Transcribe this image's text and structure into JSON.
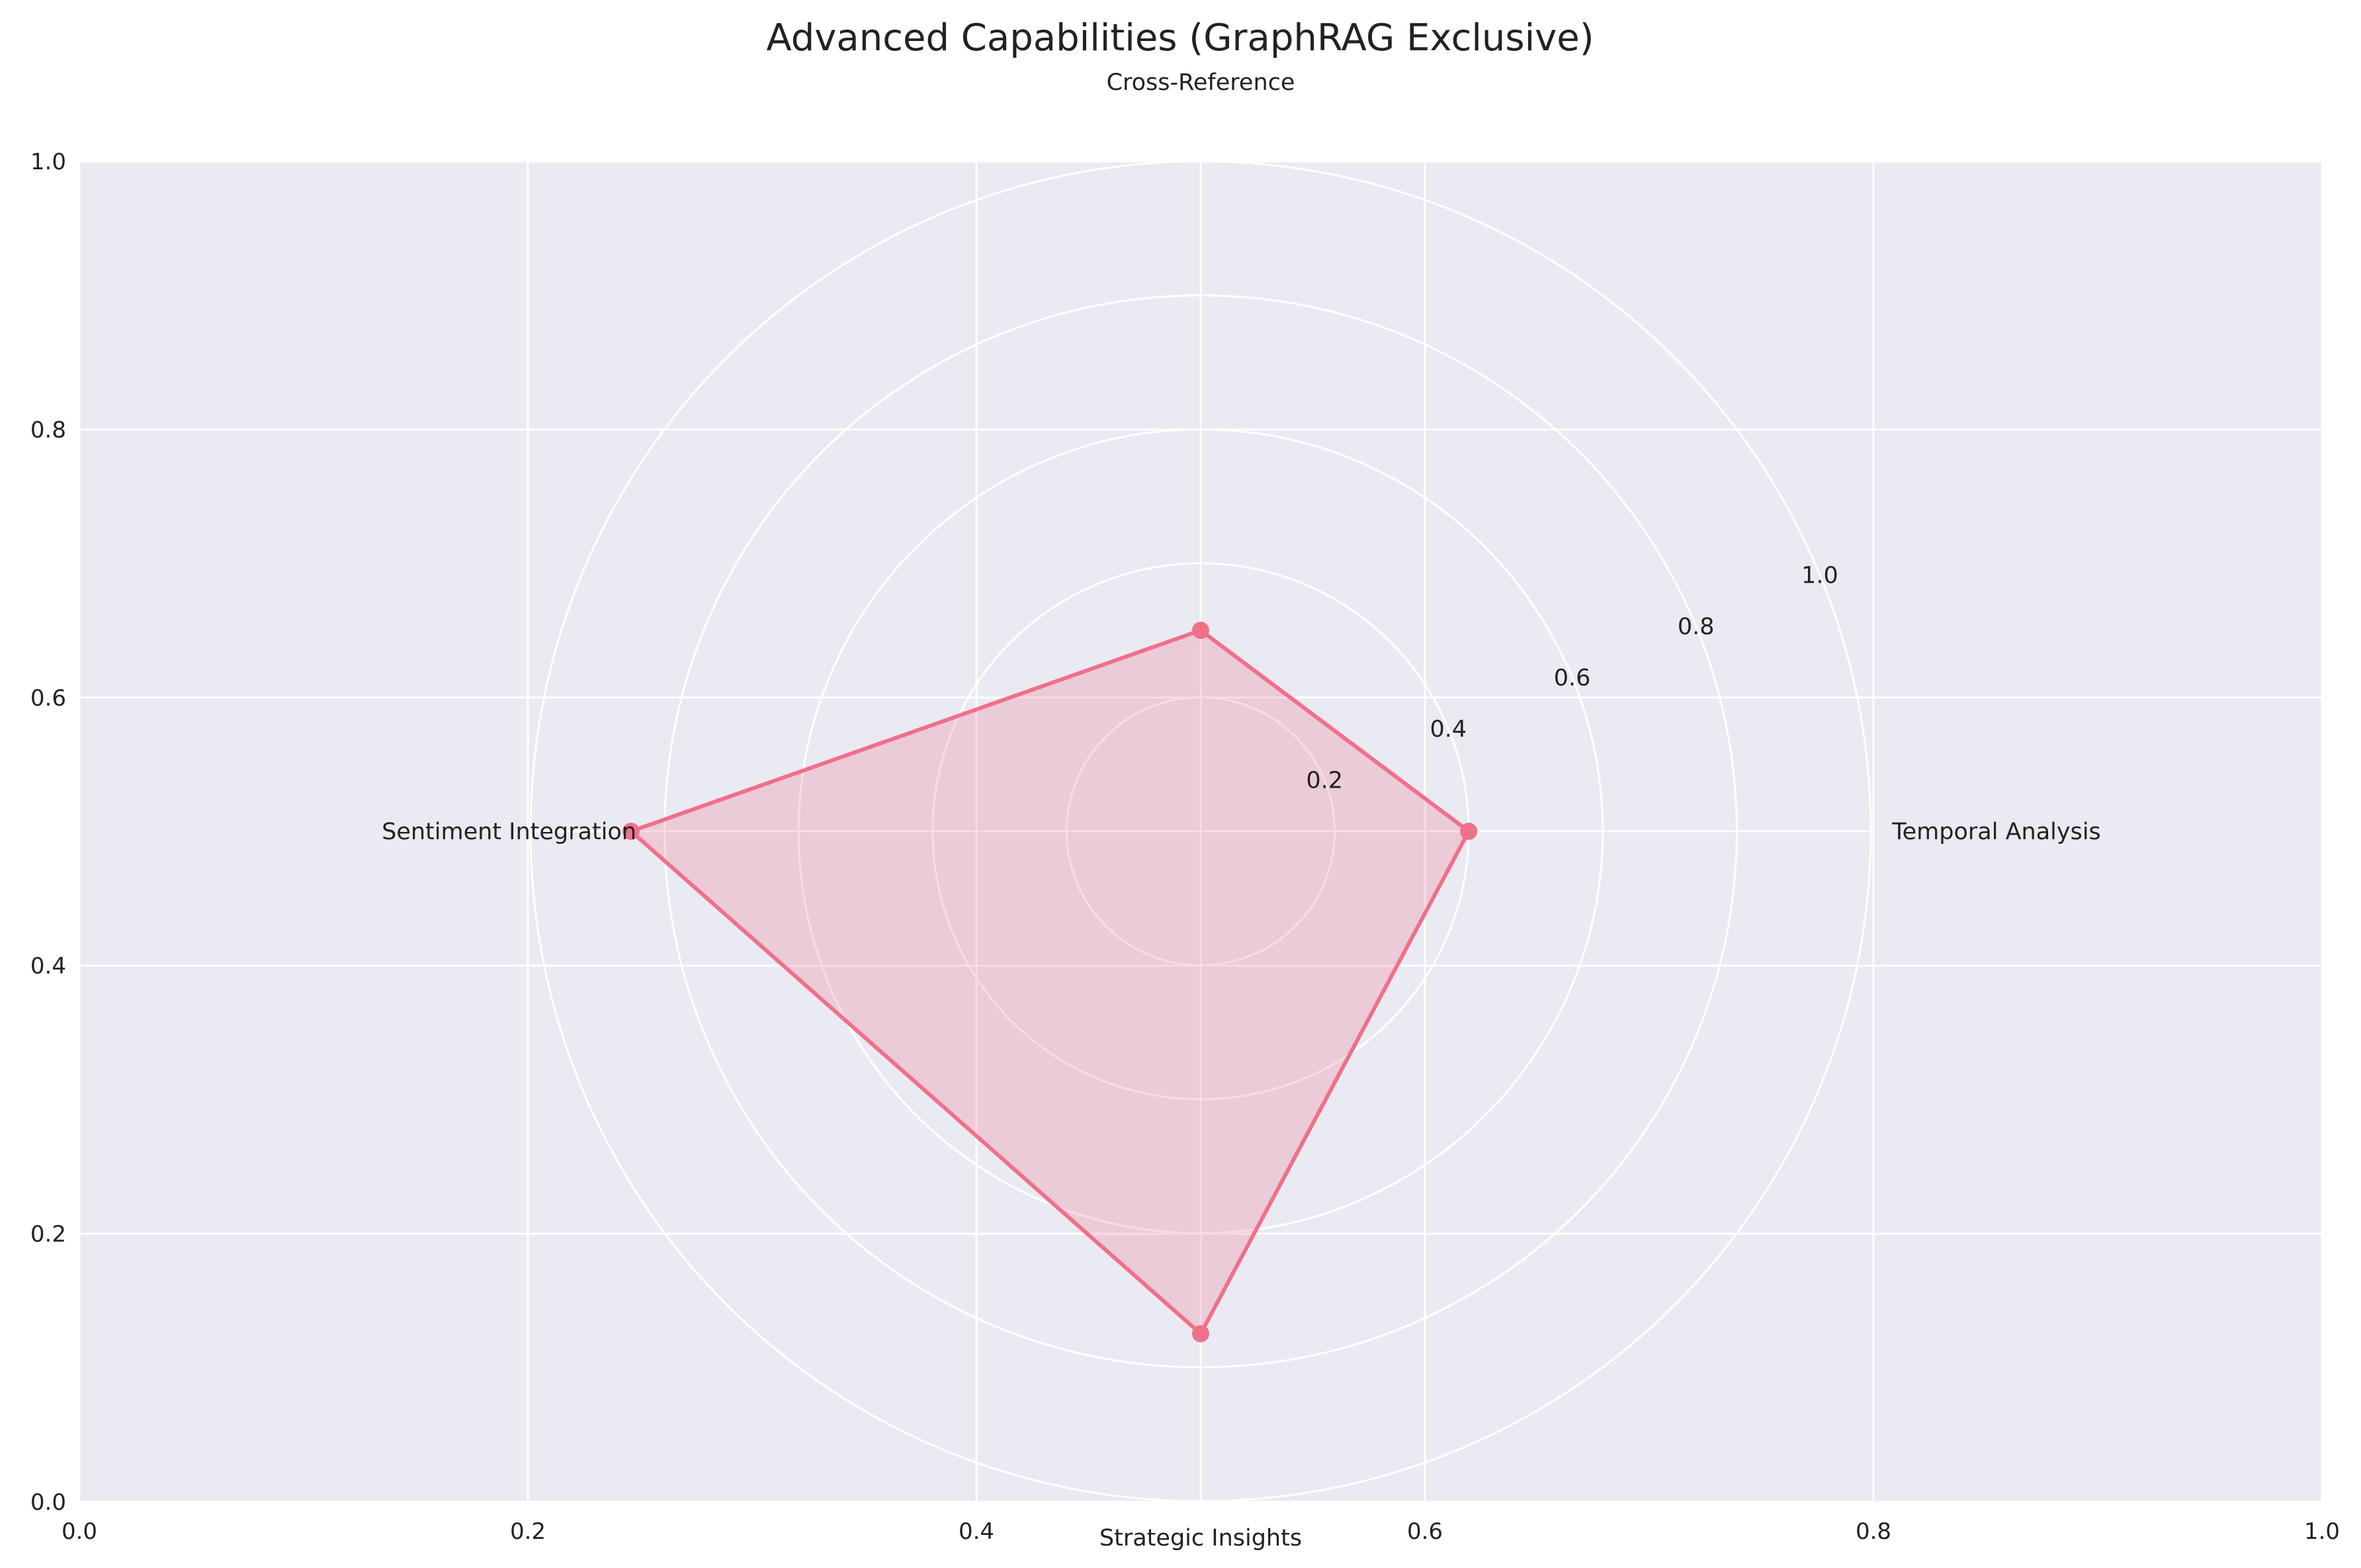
{
  "chart_data": {
    "type": "radar",
    "title": "Advanced Capabilities (GraphRAG Exclusive)",
    "categories": [
      "Temporal Analysis",
      "Cross-Reference",
      "Sentiment Integration",
      "Strategic Insights"
    ],
    "series": [
      {
        "values": [
          0.4,
          0.3,
          0.85,
          0.75
        ]
      }
    ],
    "radial_ticks": [
      "0.2",
      "0.4",
      "0.6",
      "0.8",
      "1.0"
    ],
    "radial_range": [
      0,
      1.0
    ],
    "background_axes": {
      "x_ticks": [
        "0.0",
        "0.2",
        "0.4",
        "0.6",
        "0.8",
        "1.0"
      ],
      "y_ticks": [
        "0.0",
        "0.2",
        "0.4",
        "0.6",
        "0.8",
        "1.0"
      ],
      "xlim": [
        0,
        1
      ],
      "ylim": [
        0,
        1
      ]
    },
    "grid": true,
    "colors": {
      "background": "#EAEAF2",
      "grid": "#FFFFFF",
      "series": "#F07089",
      "fill": "#F07089"
    }
  }
}
